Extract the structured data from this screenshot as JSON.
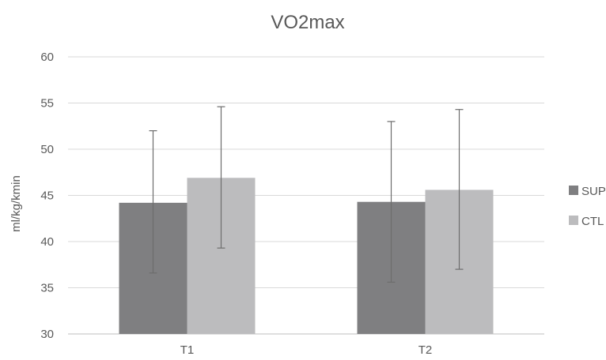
{
  "chart_data": {
    "type": "bar",
    "title": "VO2max",
    "xlabel": "",
    "ylabel": "ml/kg/kmin",
    "categories": [
      "T1",
      "T2"
    ],
    "ylim": [
      30,
      60
    ],
    "yticks": [
      30,
      35,
      40,
      45,
      50,
      55,
      60
    ],
    "grid": true,
    "legend_position": "right",
    "series": [
      {
        "name": "SUP",
        "color": "#7f7f81",
        "values": [
          44.2,
          44.3
        ],
        "error_low": [
          36.6,
          35.6
        ],
        "error_high": [
          52.0,
          53.0
        ]
      },
      {
        "name": "CTL",
        "color": "#bcbcbe",
        "values": [
          46.9,
          45.6
        ],
        "error_low": [
          39.3,
          37.0
        ],
        "error_high": [
          54.6,
          54.3
        ]
      }
    ]
  }
}
